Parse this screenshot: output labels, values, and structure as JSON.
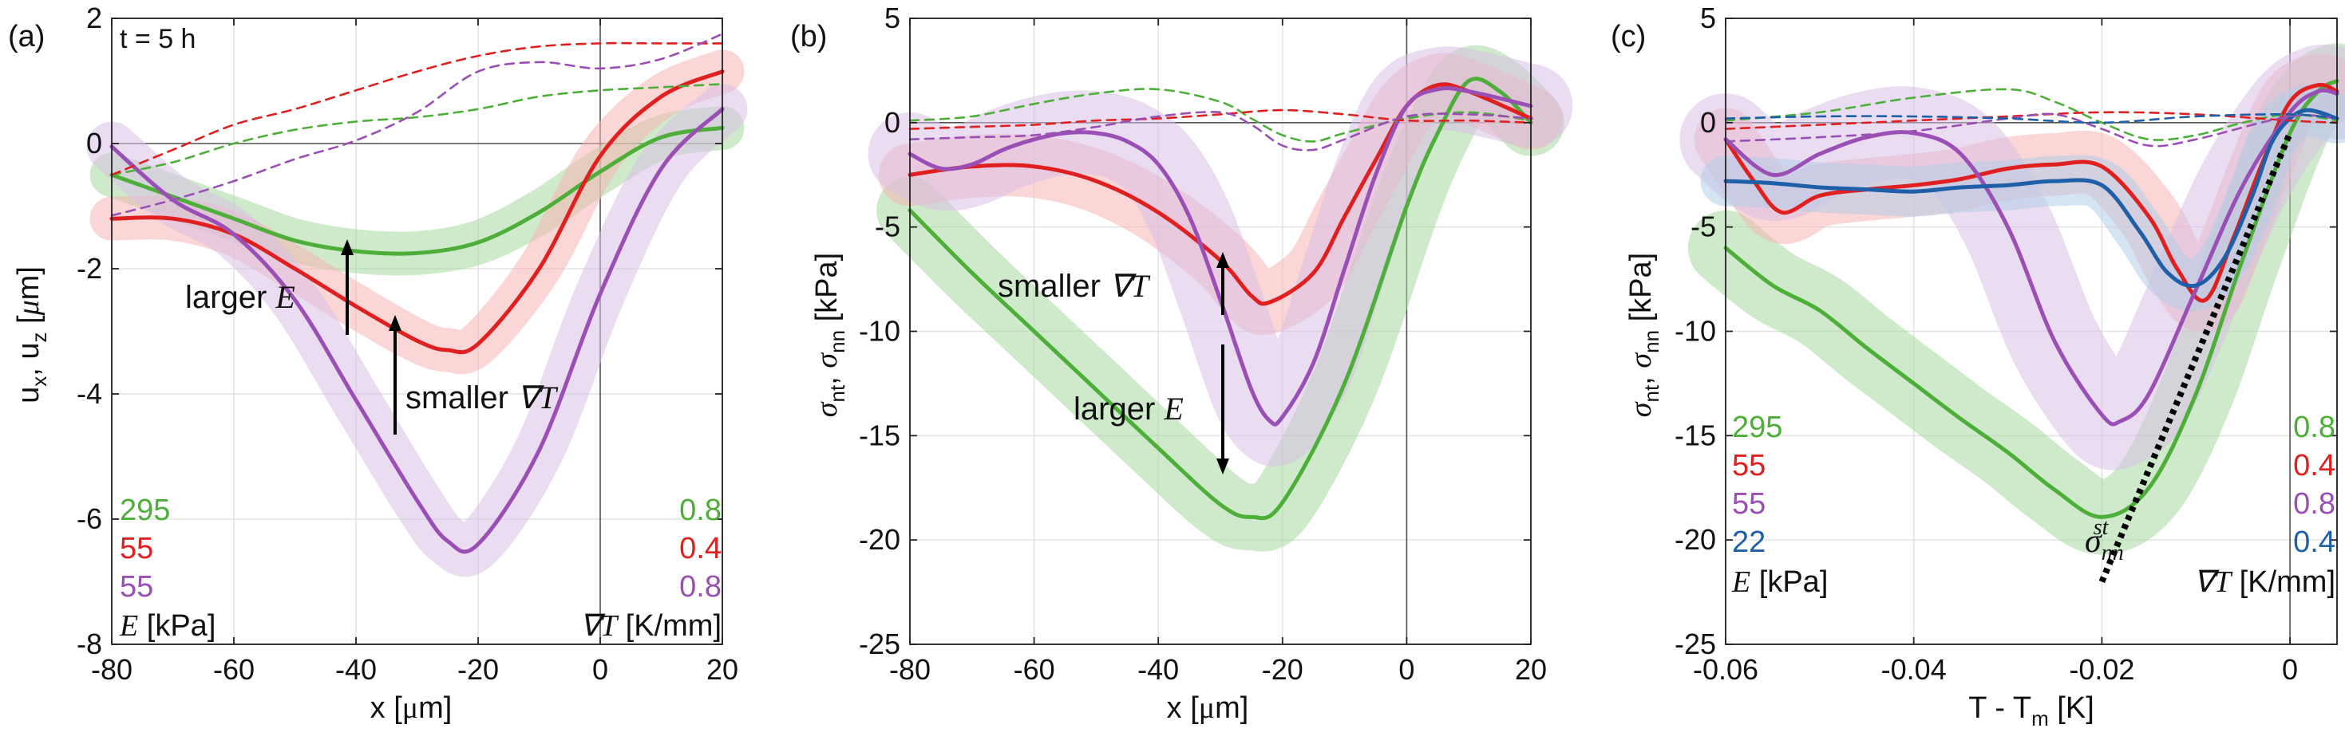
{
  "colors": {
    "green": "#4daf3a",
    "red": "#e02020",
    "purple": "#9a4fb5",
    "blue": "#1f5fa8",
    "green_band": "#a6d9a0",
    "red_band": "#f7b5b5",
    "purple_band": "#d9bfe6",
    "blue_band": "#b3cde8",
    "grid": "#e3e3e3",
    "axis": "#222222"
  },
  "chart_data": [
    {
      "id": "a",
      "type": "line",
      "panel_label": "(a)",
      "annotation_time": "t = 5 h",
      "xlabel": "x [μm]",
      "ylabel": "u_x, u_z [μm]",
      "xlim": [
        -80,
        20
      ],
      "ylim": [
        -8,
        2
      ],
      "xticks": [
        -80,
        -60,
        -40,
        -20,
        0,
        20
      ],
      "yticks": [
        -8,
        -6,
        -4,
        -2,
        0,
        2
      ],
      "grid": true,
      "legend": {
        "E_values": [
          "295",
          "55",
          "55"
        ],
        "gradT_values": [
          "0.8",
          "0.4",
          "0.8"
        ],
        "E_label": "E",
        "E_unit": "[kPa]",
        "gradT_label": "∇T",
        "gradT_unit": "[K/mm]"
      },
      "annotations": {
        "larger_E": "larger",
        "larger_E_sym": "E",
        "smaller_gradT": "smaller",
        "smaller_gradT_sym": "∇T"
      },
      "series": [
        {
          "name": "E=295 kPa, ∇T=0.8 K/mm (u_x)",
          "color": "green",
          "style": "solid",
          "band": 0.35,
          "x": [
            -80,
            -70,
            -60,
            -50,
            -40,
            -30,
            -20,
            -10,
            0,
            10,
            20
          ],
          "y": [
            -0.5,
            -0.85,
            -1.2,
            -1.55,
            -1.72,
            -1.75,
            -1.58,
            -1.1,
            -0.45,
            0.1,
            0.25
          ]
        },
        {
          "name": "E=55 kPa, ∇T=0.4 K/mm (u_x)",
          "color": "red",
          "style": "solid",
          "band": 0.35,
          "x": [
            -80,
            -70,
            -60,
            -50,
            -40,
            -30,
            -25,
            -20,
            -10,
            0,
            10,
            20
          ],
          "y": [
            -1.2,
            -1.2,
            -1.45,
            -2.0,
            -2.6,
            -3.15,
            -3.3,
            -3.2,
            -2.0,
            -0.2,
            0.75,
            1.15
          ]
        },
        {
          "name": "E=55 kPa, ∇T=0.8 K/mm (u_x)",
          "color": "purple",
          "style": "solid",
          "band": 0.4,
          "x": [
            -80,
            -70,
            -60,
            -50,
            -40,
            -30,
            -25,
            -20,
            -10,
            0,
            10,
            20
          ],
          "y": [
            -0.05,
            -0.9,
            -1.45,
            -2.5,
            -4.1,
            -5.7,
            -6.35,
            -6.4,
            -4.9,
            -2.4,
            -0.4,
            0.55
          ]
        },
        {
          "name": "E=295 kPa, ∇T=0.8 K/mm (u_z)",
          "color": "green",
          "style": "dashed",
          "x": [
            -80,
            -70,
            -60,
            -50,
            -40,
            -30,
            -20,
            -10,
            0,
            10,
            20
          ],
          "y": [
            -0.5,
            -0.3,
            0.0,
            0.22,
            0.35,
            0.42,
            0.55,
            0.75,
            0.85,
            0.9,
            0.95
          ]
        },
        {
          "name": "E=55 kPa, ∇T=0.4 K/mm (u_z)",
          "color": "red",
          "style": "dashed",
          "x": [
            -80,
            -70,
            -60,
            -50,
            -40,
            -30,
            -20,
            -10,
            0,
            10,
            20
          ],
          "y": [
            -0.5,
            -0.1,
            0.3,
            0.55,
            0.85,
            1.15,
            1.4,
            1.55,
            1.6,
            1.6,
            1.6
          ]
        },
        {
          "name": "E=55 kPa, ∇T=0.8 K/mm (u_z)",
          "color": "purple",
          "style": "dashed",
          "x": [
            -80,
            -70,
            -60,
            -50,
            -40,
            -30,
            -20,
            -10,
            0,
            10,
            20
          ],
          "y": [
            -1.15,
            -0.9,
            -0.6,
            -0.25,
            0.05,
            0.5,
            1.15,
            1.3,
            1.2,
            1.35,
            1.75
          ]
        }
      ]
    },
    {
      "id": "b",
      "type": "line",
      "panel_label": "(b)",
      "xlabel": "x [μm]",
      "ylabel": "σ_nt, σ_nn [kPa]",
      "xlim": [
        -80,
        20
      ],
      "ylim": [
        -25,
        5
      ],
      "xticks": [
        -80,
        -60,
        -40,
        -20,
        0,
        20
      ],
      "yticks": [
        -25,
        -20,
        -15,
        -10,
        -5,
        0,
        5
      ],
      "grid": true,
      "annotations": {
        "smaller_gradT": "smaller",
        "smaller_gradT_sym": "∇T",
        "larger_E": "larger",
        "larger_E_sym": "E"
      },
      "series": [
        {
          "name": "E=295, ∇T=0.8 (σ_nn)",
          "color": "green",
          "style": "solid",
          "band": 1.6,
          "x": [
            -80,
            -70,
            -60,
            -50,
            -40,
            -30,
            -25,
            -20,
            -10,
            0,
            5,
            10,
            15,
            20
          ],
          "y": [
            -4.2,
            -7.2,
            -10.0,
            -12.8,
            -15.6,
            -18.3,
            -18.9,
            -18.2,
            -12.5,
            -4.0,
            -0.5,
            2.0,
            1.5,
            0.0
          ]
        },
        {
          "name": "E=55, ∇T=0.4 (σ_nn)",
          "color": "red",
          "style": "solid",
          "band": 1.5,
          "x": [
            -80,
            -70,
            -60,
            -50,
            -40,
            -30,
            -25,
            -22,
            -15,
            -10,
            -5,
            0,
            5,
            10,
            20
          ],
          "y": [
            -2.5,
            -2.1,
            -2.1,
            -2.8,
            -4.3,
            -6.6,
            -8.3,
            -8.6,
            -7.2,
            -4.5,
            -1.8,
            0.8,
            1.8,
            1.5,
            0.2
          ]
        },
        {
          "name": "E=55, ∇T=0.8 (σ_nn)",
          "color": "purple",
          "style": "solid",
          "band": 2.0,
          "x": [
            -80,
            -75,
            -70,
            -65,
            -60,
            -55,
            -50,
            -45,
            -40,
            -35,
            -30,
            -25,
            -22,
            -20,
            -15,
            -10,
            -5,
            0,
            5,
            10,
            20
          ],
          "y": [
            -1.5,
            -2.2,
            -2.0,
            -1.3,
            -0.8,
            -0.5,
            -0.5,
            -0.9,
            -2.0,
            -4.5,
            -8.5,
            -12.8,
            -14.3,
            -14.1,
            -11.5,
            -7.0,
            -2.5,
            0.8,
            1.6,
            1.5,
            0.8
          ]
        },
        {
          "name": "E=295, ∇T=0.8 (σ_nt)",
          "color": "green",
          "style": "dashed",
          "x": [
            -80,
            -70,
            -60,
            -50,
            -40,
            -30,
            -25,
            -20,
            -15,
            -10,
            0,
            10,
            20
          ],
          "y": [
            0.1,
            0.3,
            0.9,
            1.4,
            1.6,
            1.0,
            0.2,
            -0.6,
            -0.9,
            -0.5,
            0.2,
            0.5,
            0.1
          ]
        },
        {
          "name": "E=55, ∇T=0.4 (σ_nt)",
          "color": "red",
          "style": "dashed",
          "x": [
            -80,
            -70,
            -60,
            -50,
            -40,
            -30,
            -20,
            -10,
            0,
            10,
            20
          ],
          "y": [
            -0.3,
            -0.2,
            -0.1,
            0.1,
            0.2,
            0.4,
            0.6,
            0.4,
            0.1,
            0.1,
            0.0
          ]
        },
        {
          "name": "E=55, ∇T=0.8 (σ_nt)",
          "color": "purple",
          "style": "dashed",
          "x": [
            -80,
            -70,
            -60,
            -50,
            -40,
            -30,
            -25,
            -20,
            -15,
            -10,
            0,
            10,
            20
          ],
          "y": [
            -0.8,
            -0.7,
            -0.6,
            -0.2,
            0.3,
            0.5,
            -0.1,
            -1.1,
            -1.3,
            -0.8,
            0.3,
            0.4,
            0.2
          ]
        }
      ]
    },
    {
      "id": "c",
      "type": "line",
      "panel_label": "(c)",
      "xlabel": "T - T_m [K]",
      "ylabel": "σ_nt, σ_nn [kPa]",
      "xlim": [
        -0.06,
        0.005
      ],
      "ylim": [
        -25,
        5
      ],
      "xticks": [
        -0.06,
        -0.04,
        -0.02,
        0
      ],
      "yticks": [
        -25,
        -20,
        -15,
        -10,
        -5,
        0,
        5
      ],
      "grid": true,
      "legend": {
        "E_values": [
          "295",
          "55",
          "55",
          "22"
        ],
        "gradT_values": [
          "0.8",
          "0.4",
          "0.8",
          "0.4"
        ],
        "E_label": "E",
        "E_unit": "[kPa]",
        "gradT_label": "∇T",
        "gradT_unit": "[K/mm]"
      },
      "annotations": {
        "sigma_st_main": "σ",
        "sigma_st_sub": "nn",
        "sigma_st_sup": "st"
      },
      "reference_line": {
        "style": "dotted",
        "color": "#000000",
        "x": [
          -0.02,
          0.0
        ],
        "y": [
          -22,
          -0.5
        ]
      },
      "series": [
        {
          "name": "E=295, ∇T=0.8 (σ_nn)",
          "color": "green",
          "style": "solid",
          "band": 1.8,
          "x": [
            -0.06,
            -0.055,
            -0.05,
            -0.045,
            -0.04,
            -0.035,
            -0.03,
            -0.025,
            -0.02,
            -0.015,
            -0.01,
            -0.005,
            0.0,
            0.003,
            0.005
          ],
          "y": [
            -6.0,
            -7.8,
            -9.0,
            -10.8,
            -12.5,
            -14.2,
            -15.8,
            -17.6,
            -18.9,
            -17.5,
            -13.0,
            -6.5,
            -0.5,
            1.5,
            2.0
          ]
        },
        {
          "name": "E=55, ∇T=0.4 (σ_nn)",
          "color": "red",
          "style": "solid",
          "band": 1.5,
          "x": [
            -0.06,
            -0.057,
            -0.054,
            -0.05,
            -0.045,
            -0.04,
            -0.035,
            -0.03,
            -0.025,
            -0.02,
            -0.015,
            -0.012,
            -0.009,
            -0.006,
            -0.003,
            0.0,
            0.003,
            0.005
          ],
          "y": [
            -0.8,
            -2.8,
            -4.3,
            -3.5,
            -3.2,
            -3.0,
            -2.7,
            -2.2,
            -2.0,
            -2.1,
            -4.5,
            -7.0,
            -8.5,
            -5.5,
            -2.0,
            1.0,
            1.8,
            1.5
          ]
        },
        {
          "name": "E=55, ∇T=0.8 (σ_nn)",
          "color": "purple",
          "style": "solid",
          "band": 2.2,
          "x": [
            -0.06,
            -0.055,
            -0.05,
            -0.045,
            -0.04,
            -0.035,
            -0.03,
            -0.025,
            -0.02,
            -0.018,
            -0.015,
            -0.01,
            -0.005,
            0.0,
            0.003,
            0.005
          ],
          "y": [
            -0.8,
            -2.5,
            -1.5,
            -0.7,
            -0.5,
            -1.5,
            -5.0,
            -10.5,
            -14.0,
            -14.3,
            -13.0,
            -8.0,
            -3.0,
            0.5,
            1.5,
            1.4
          ]
        },
        {
          "name": "E=22, ∇T=0.4 (σ_nn)",
          "color": "blue",
          "style": "solid",
          "band": 1.2,
          "x": [
            -0.06,
            -0.055,
            -0.05,
            -0.045,
            -0.04,
            -0.035,
            -0.03,
            -0.025,
            -0.02,
            -0.016,
            -0.013,
            -0.01,
            -0.007,
            -0.004,
            -0.002,
            0.0,
            0.002,
            0.005
          ],
          "y": [
            -2.8,
            -2.9,
            -3.1,
            -3.2,
            -3.3,
            -3.1,
            -3.0,
            -2.8,
            -3.0,
            -5.2,
            -7.2,
            -7.8,
            -6.5,
            -3.5,
            -1.0,
            0.2,
            0.6,
            0.2
          ]
        },
        {
          "name": "E=295, ∇T=0.8 (σ_nt)",
          "color": "green",
          "style": "dashed",
          "x": [
            -0.06,
            -0.05,
            -0.04,
            -0.03,
            -0.025,
            -0.02,
            -0.015,
            -0.01,
            -0.005,
            0.0,
            0.005
          ],
          "y": [
            0.1,
            0.5,
            1.2,
            1.6,
            1.0,
            0.0,
            -0.8,
            -0.6,
            0.0,
            0.4,
            0.1
          ]
        },
        {
          "name": "E=55, ∇T=0.4 (σ_nt)",
          "color": "red",
          "style": "dashed",
          "x": [
            -0.06,
            -0.05,
            -0.04,
            -0.03,
            -0.02,
            -0.01,
            0.0,
            0.005
          ],
          "y": [
            -0.3,
            -0.1,
            0.1,
            0.3,
            0.5,
            0.4,
            0.1,
            0.0
          ]
        },
        {
          "name": "E=55, ∇T=0.8 (σ_nt)",
          "color": "purple",
          "style": "dashed",
          "x": [
            -0.06,
            -0.05,
            -0.04,
            -0.03,
            -0.025,
            -0.02,
            -0.015,
            -0.01,
            0.0,
            0.005
          ],
          "y": [
            -0.9,
            -0.7,
            -0.4,
            0.2,
            0.4,
            -0.3,
            -1.1,
            -0.8,
            0.3,
            0.2
          ]
        },
        {
          "name": "E=22, ∇T=0.4 (σ_nt)",
          "color": "blue",
          "style": "dashed",
          "x": [
            -0.06,
            -0.05,
            -0.04,
            -0.03,
            -0.02,
            -0.01,
            0.0,
            0.005
          ],
          "y": [
            0.2,
            0.3,
            0.3,
            0.2,
            0.0,
            0.3,
            0.4,
            0.2
          ]
        }
      ]
    }
  ]
}
